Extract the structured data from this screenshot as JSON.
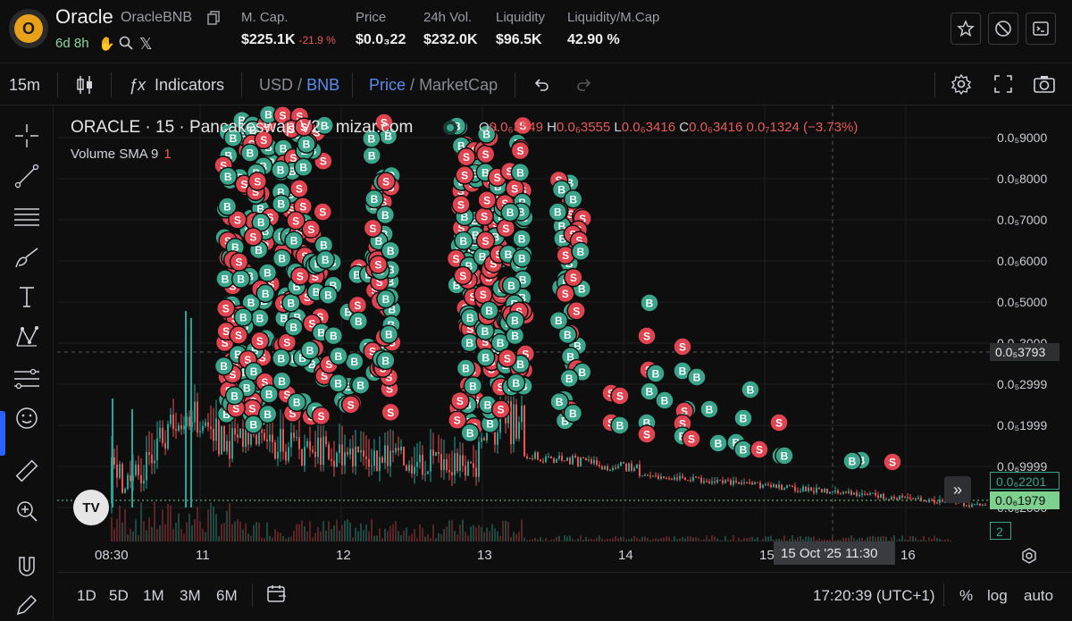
{
  "token": {
    "name": "Oracle",
    "pair": "OracleBNB",
    "age": "6d 8h",
    "logo_letter": "O"
  },
  "stats": [
    {
      "label": "M. Cap.",
      "value": "$225.1K",
      "change": "-21.9 %"
    },
    {
      "label": "Price",
      "value": "$0.0₃22"
    },
    {
      "label": "24h Vol.",
      "value": "$232.0K"
    },
    {
      "label": "Liquidity",
      "value": "$96.5K"
    },
    {
      "label": "Liquidity/M.Cap",
      "value": "42.90 %"
    }
  ],
  "header_icons": [
    "star-icon",
    "block-icon",
    "terminal-icon"
  ],
  "toolbar": {
    "interval": "15m",
    "indicators": "Indicators",
    "currency_a": "USD",
    "currency_sep": "/",
    "currency_b": "BNB",
    "mode_a": "Price",
    "mode_sep": "/",
    "mode_b": "MarketCap"
  },
  "legend": {
    "title": "ORACLE · 15 · Pancakeswap V2 · mizar.com",
    "o_label": "O",
    "o_val": "0.0₆3549",
    "h_label": "H",
    "h_val": "0.0₆3555",
    "l_label": "L",
    "l_val": "0.0₆3416",
    "c_label": "C",
    "c_val": "0.0₆3416",
    "change": "0.0₇1324 (−3.73%)",
    "volume_label": "Volume SMA 9",
    "volume_value": "1"
  },
  "y_ticks": [
    "0.0₅9000",
    "0.0₅8000",
    "0.0₅7000",
    "0.0₅6000",
    "0.0₅5000",
    "0.0₅3000",
    "0.0₅2999",
    "0.0₅1999",
    "0.0₆9999",
    "0.0₆2000"
  ],
  "y_boxes": {
    "crosshair": "0.0₅3793",
    "last_price": "0.0₆2201",
    "current": "0.0₆1979",
    "volume": "2"
  },
  "x_ticks": [
    "08:30",
    "11",
    "12",
    "13",
    "14",
    "15",
    "16"
  ],
  "x_crosshair": "15 Oct '25   11:30",
  "ranges": [
    "1D",
    "5D",
    "1M",
    "3M",
    "6M"
  ],
  "clock": "17:20:39 (UTC+1)",
  "scale_opts": {
    "pct": "%",
    "log": "log",
    "auto": "auto"
  },
  "colors": {
    "buy": "#3aa58a",
    "sell": "#e04450",
    "up": "#26a69a",
    "down": "#ef5350"
  },
  "markers": {
    "buy": "B",
    "sell": "S"
  }
}
